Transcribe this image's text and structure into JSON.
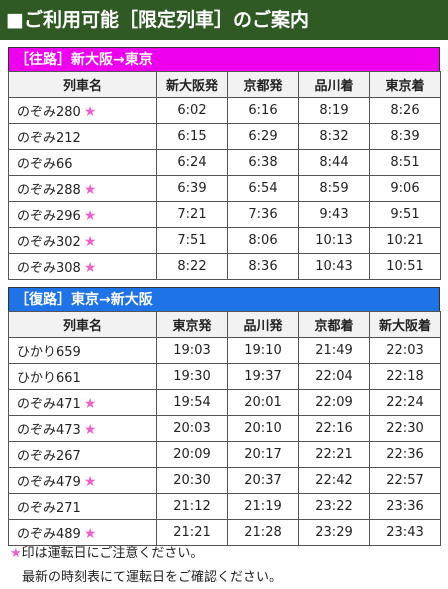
{
  "header": {
    "title": "■ご利用可能［限定列車］のご案内"
  },
  "colors": {
    "header_bg": "#2f5a24",
    "outbound_bg": "#ee00ee",
    "inbound_bg": "#1e73e6",
    "star": "#f060c8"
  },
  "outbound": {
    "title": "［往路］新大阪→東京",
    "columns": [
      "列車名",
      "新大阪発",
      "京都発",
      "品川着",
      "東京着"
    ],
    "rows": [
      {
        "name": "のぞみ280",
        "star": true,
        "times": [
          "6:02",
          "6:16",
          "8:19",
          "8:26"
        ]
      },
      {
        "name": "のぞみ212",
        "star": false,
        "times": [
          "6:15",
          "6:29",
          "8:32",
          "8:39"
        ]
      },
      {
        "name": "のぞみ66",
        "star": false,
        "times": [
          "6:24",
          "6:38",
          "8:44",
          "8:51"
        ]
      },
      {
        "name": "のぞみ288",
        "star": true,
        "times": [
          "6:39",
          "6:54",
          "8:59",
          "9:06"
        ]
      },
      {
        "name": "のぞみ296",
        "star": true,
        "times": [
          "7:21",
          "7:36",
          "9:43",
          "9:51"
        ]
      },
      {
        "name": "のぞみ302",
        "star": true,
        "times": [
          "7:51",
          "8:06",
          "10:13",
          "10:21"
        ]
      },
      {
        "name": "のぞみ308",
        "star": true,
        "times": [
          "8:22",
          "8:36",
          "10:43",
          "10:51"
        ]
      }
    ]
  },
  "inbound": {
    "title": "［復路］東京→新大阪",
    "columns": [
      "列車名",
      "東京発",
      "品川発",
      "京都着",
      "新大阪着"
    ],
    "rows": [
      {
        "name": "ひかり659",
        "star": false,
        "times": [
          "19:03",
          "19:10",
          "21:49",
          "22:03"
        ]
      },
      {
        "name": "ひかり661",
        "star": false,
        "times": [
          "19:30",
          "19:37",
          "22:04",
          "22:18"
        ]
      },
      {
        "name": "のぞみ471",
        "star": true,
        "times": [
          "19:54",
          "20:01",
          "22:09",
          "22:24"
        ]
      },
      {
        "name": "のぞみ473",
        "star": true,
        "times": [
          "20:03",
          "20:10",
          "22:16",
          "22:30"
        ]
      },
      {
        "name": "のぞみ267",
        "star": false,
        "times": [
          "20:09",
          "20:17",
          "22:21",
          "22:36"
        ]
      },
      {
        "name": "のぞみ479",
        "star": true,
        "times": [
          "20:30",
          "20:37",
          "22:42",
          "22:57"
        ]
      },
      {
        "name": "のぞみ271",
        "star": false,
        "times": [
          "21:12",
          "21:19",
          "23:22",
          "23:36"
        ]
      },
      {
        "name": "のぞみ489",
        "star": true,
        "times": [
          "21:21",
          "21:28",
          "23:29",
          "23:43"
        ]
      }
    ]
  },
  "notes": {
    "star_symbol": "★",
    "line1": "印は運転日にご注意ください。",
    "line2": "最新の時刻表にて運転日をご確認ください。"
  }
}
